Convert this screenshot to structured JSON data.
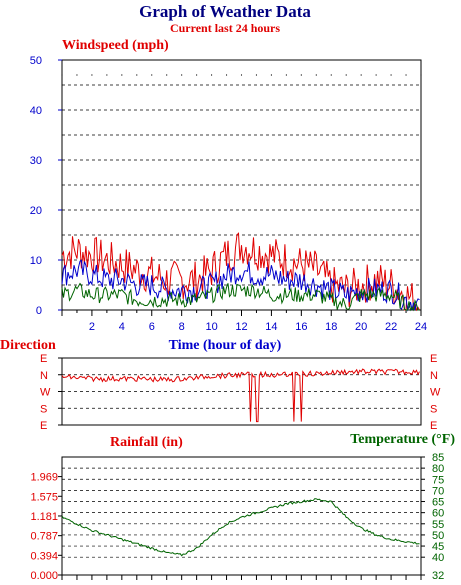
{
  "title": "Graph of Weather Data",
  "subtitle": "Current last 24 hours",
  "colors": {
    "red": "#e00000",
    "blue": "#0000cc",
    "green": "#006400",
    "dark_navy": "#000080",
    "grid": "#000000"
  },
  "chart_data": [
    {
      "type": "line",
      "ylabel": "Windspeed (mph)",
      "xlabel": "Time (hour of day)",
      "xlim": [
        0,
        24
      ],
      "ylim": [
        0,
        50
      ],
      "yticks": [
        0,
        10,
        20,
        30,
        40,
        50
      ],
      "xticks": [
        2,
        4,
        6,
        8,
        10,
        12,
        14,
        16,
        18,
        20,
        22,
        24
      ],
      "grid": true,
      "series": [
        {
          "color": "#e00000",
          "x": [
            0,
            1,
            2,
            3,
            4,
            5,
            6,
            7,
            8,
            9,
            10,
            11,
            12,
            13,
            14,
            15,
            16,
            17,
            18,
            19,
            20,
            21,
            22,
            23,
            24
          ],
          "values": [
            11,
            12,
            11,
            10,
            9,
            8,
            7,
            6,
            6,
            6,
            8,
            11,
            13,
            12,
            11,
            10,
            9,
            8,
            5,
            4,
            5,
            6,
            5,
            3,
            1
          ]
        },
        {
          "color": "#0000cc",
          "x": [
            0,
            1,
            2,
            3,
            4,
            5,
            6,
            7,
            8,
            9,
            10,
            11,
            12,
            13,
            14,
            15,
            16,
            17,
            18,
            19,
            20,
            21,
            22,
            23,
            24
          ],
          "values": [
            7,
            8,
            7,
            6,
            6,
            5,
            5,
            4,
            4,
            4,
            5,
            7,
            8,
            7,
            7,
            6,
            6,
            5,
            4,
            3,
            4,
            4,
            4,
            2,
            1
          ]
        },
        {
          "color": "#006400",
          "x": [
            0,
            1,
            2,
            3,
            4,
            5,
            6,
            7,
            8,
            9,
            10,
            11,
            12,
            13,
            14,
            15,
            16,
            17,
            18,
            19,
            20,
            21,
            22,
            23,
            24
          ],
          "values": [
            3,
            4,
            3,
            3,
            3,
            2,
            2,
            2,
            2,
            2,
            3,
            4,
            4,
            4,
            3,
            3,
            3,
            3,
            2,
            1,
            3,
            3,
            3,
            1,
            0
          ]
        }
      ]
    },
    {
      "type": "line",
      "ylabel": "Direction",
      "xlim": [
        0,
        24
      ],
      "yticks": [
        "E",
        "N",
        "W",
        "S",
        "E"
      ],
      "grid": true,
      "series": [
        {
          "color": "#e00000",
          "x": [
            0,
            1,
            2,
            3,
            4,
            5,
            6,
            7,
            8,
            9,
            10,
            11,
            12,
            13,
            14,
            15,
            16,
            17,
            18,
            19,
            20,
            21,
            22,
            23,
            24
          ],
          "values": [
            0.3,
            0.2,
            0.1,
            0.1,
            0.1,
            0.1,
            0.05,
            0.0,
            0.1,
            0.2,
            0.4,
            0.4,
            0.5,
            0.5,
            0.5,
            0.5,
            0.6,
            0.6,
            0.7,
            0.8,
            0.8,
            0.8,
            0.8,
            0.8,
            0.8
          ]
        }
      ]
    },
    {
      "type": "line",
      "ylabel": "Rainfall (in)",
      "y2label": "Temperature (°F)",
      "xlim": [
        0,
        24
      ],
      "ylim": [
        0,
        2.361
      ],
      "yticks": [
        "0.000",
        "0.394",
        "0.787",
        "1.181",
        "1.575",
        "1.969"
      ],
      "y2lim": [
        32,
        85
      ],
      "y2ticks": [
        32,
        40,
        45,
        50,
        55,
        60,
        65,
        70,
        75,
        80,
        85
      ],
      "grid": true,
      "series": [
        {
          "name": "Temperature",
          "axis": "right",
          "color": "#006400",
          "x": [
            0,
            1,
            2,
            3,
            4,
            5,
            6,
            7,
            8,
            9,
            10,
            11,
            12,
            13,
            14,
            15,
            16,
            17,
            18,
            19,
            20,
            21,
            22,
            23,
            24
          ],
          "values": [
            58,
            55,
            52,
            50,
            48,
            46,
            44,
            42,
            41,
            44,
            50,
            55,
            58,
            60,
            62,
            64,
            65,
            66,
            65,
            58,
            53,
            50,
            48,
            47,
            46
          ]
        }
      ]
    }
  ]
}
